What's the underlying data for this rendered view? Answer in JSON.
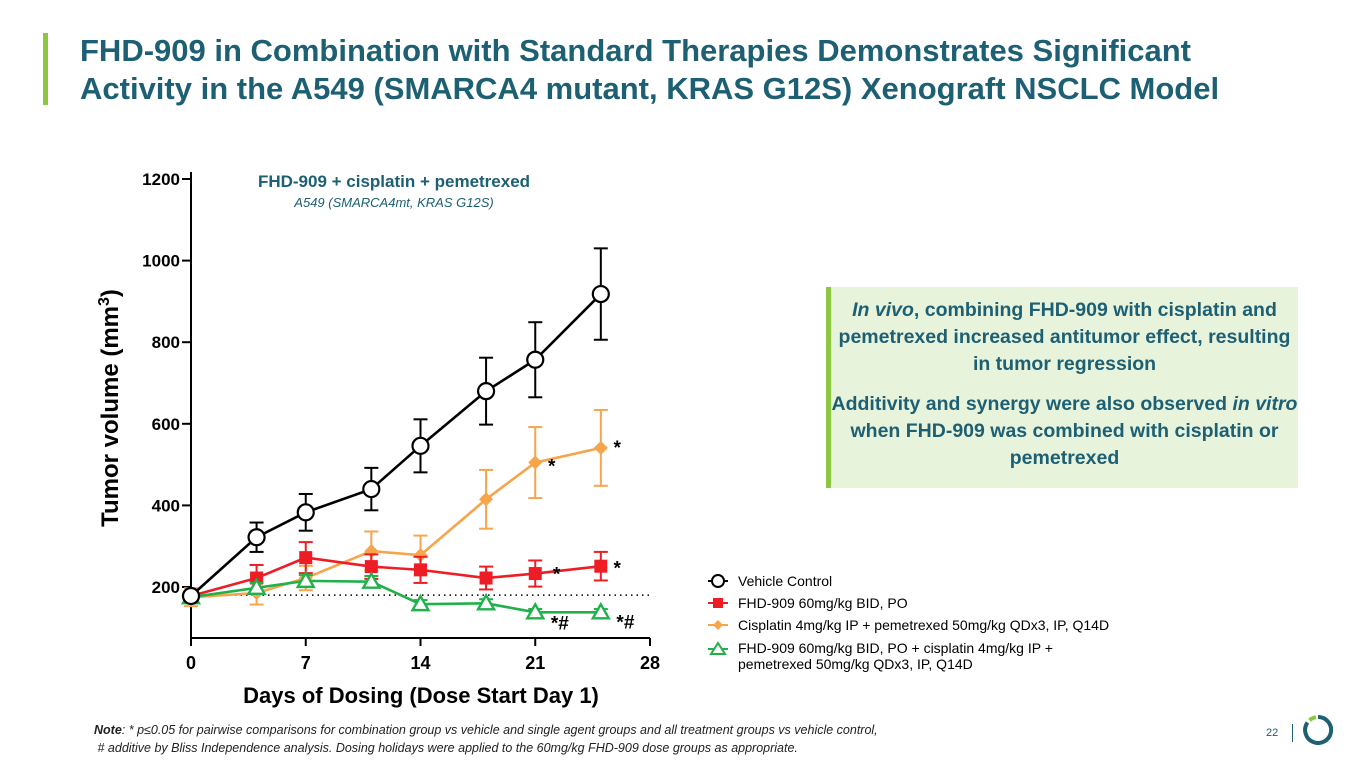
{
  "slide": {
    "title_line1": "FHD-909 in Combination with Standard Therapies Demonstrates Significant",
    "title_line2": "Activity in the A549 (SMARCA4 mutant, KRAS G12S) Xenograft NSCLC Model",
    "page_number": "22",
    "accent_color": "#8dc63f",
    "title_color": "#1d5f73"
  },
  "callout": {
    "p1_italic": "In vivo",
    "p1_rest": ", combining FHD-909 with cisplatin and pemetrexed increased antitumor effect, resulting in tumor regression",
    "p2_a": "Additivity and synergy were also observed ",
    "p2_italic": "in vitro",
    "p2_b": " when FHD-909 was combined with cisplatin or pemetrexed"
  },
  "note": {
    "label": "Note",
    "line1": ": * p≤0.05 for pairwise comparisons for combination group vs vehicle and single agent groups and all treatment groups vs vehicle control,",
    "line2": "# additive by Bliss Independence analysis. Dosing holidays were applied to the 60mg/kg FHD-909 dose groups as appropriate."
  },
  "chart_data": {
    "type": "line",
    "title": "FHD-909 + cisplatin + pemetrexed",
    "subtitle": "A549 (SMARCA4mt, KRAS G12S)",
    "xlabel": "Days of Dosing (Dose Start Day 1)",
    "ylabel": "Tumor volume (mm",
    "ylabel_sup": "3",
    "ylabel_close": ")",
    "xlim": [
      0,
      28
    ],
    "ylim": [
      100,
      1200
    ],
    "xticks": [
      "0",
      "7",
      "14",
      "21",
      "28"
    ],
    "yticks": [
      "200",
      "400",
      "600",
      "800",
      "1000",
      "1200"
    ],
    "reference_line_y": 180,
    "series": [
      {
        "name": "Vehicle Control",
        "color": "#000000",
        "marker": "circle",
        "x": [
          0,
          4,
          7,
          11,
          14,
          18,
          21,
          25
        ],
        "values": [
          178,
          322,
          383,
          440,
          546,
          680,
          757,
          918
        ],
        "errors": [
          12,
          36,
          45,
          52,
          65,
          82,
          92,
          112
        ]
      },
      {
        "name": "FHD-909 60mg/kg BID, PO",
        "color": "#ee1c25",
        "marker": "square",
        "x": [
          0,
          4,
          7,
          11,
          14,
          18,
          21,
          25
        ],
        "values": [
          178,
          222,
          272,
          250,
          242,
          222,
          233,
          251
        ],
        "errors": [
          12,
          32,
          38,
          30,
          32,
          28,
          32,
          35
        ]
      },
      {
        "name": "Cisplatin 4mg/kg IP + pemetrexed 50mg/kg QDx3, IP, Q14D",
        "color": "#f6a54b",
        "marker": "diamond",
        "x": [
          0,
          4,
          7,
          11,
          14,
          18,
          21,
          25
        ],
        "values": [
          175,
          185,
          222,
          288,
          278,
          415,
          505,
          541
        ],
        "errors": [
          22,
          28,
          30,
          48,
          48,
          72,
          87,
          93
        ]
      },
      {
        "name": "FHD-909 60mg/kg BID, PO + cisplatin 4mg/kg IP + pemetrexed 50mg/kg QDx3, IP, Q14D",
        "color": "#21b14b",
        "marker": "triangle",
        "x": [
          0,
          4,
          7,
          11,
          14,
          18,
          21,
          25
        ],
        "values": [
          175,
          198,
          215,
          213,
          158,
          160,
          138,
          138
        ],
        "errors": [
          10,
          12,
          14,
          14,
          10,
          10,
          8,
          8
        ]
      }
    ],
    "annotations": [
      {
        "text": "*",
        "x": 22,
        "y": 500
      },
      {
        "text": "*",
        "x": 26,
        "y": 545
      },
      {
        "text": "*",
        "x": 22.3,
        "y": 235
      },
      {
        "text": "*",
        "x": 26,
        "y": 250
      },
      {
        "text": "*#",
        "x": 22.5,
        "y": 116
      },
      {
        "text": "*#",
        "x": 26.5,
        "y": 118
      }
    ]
  }
}
